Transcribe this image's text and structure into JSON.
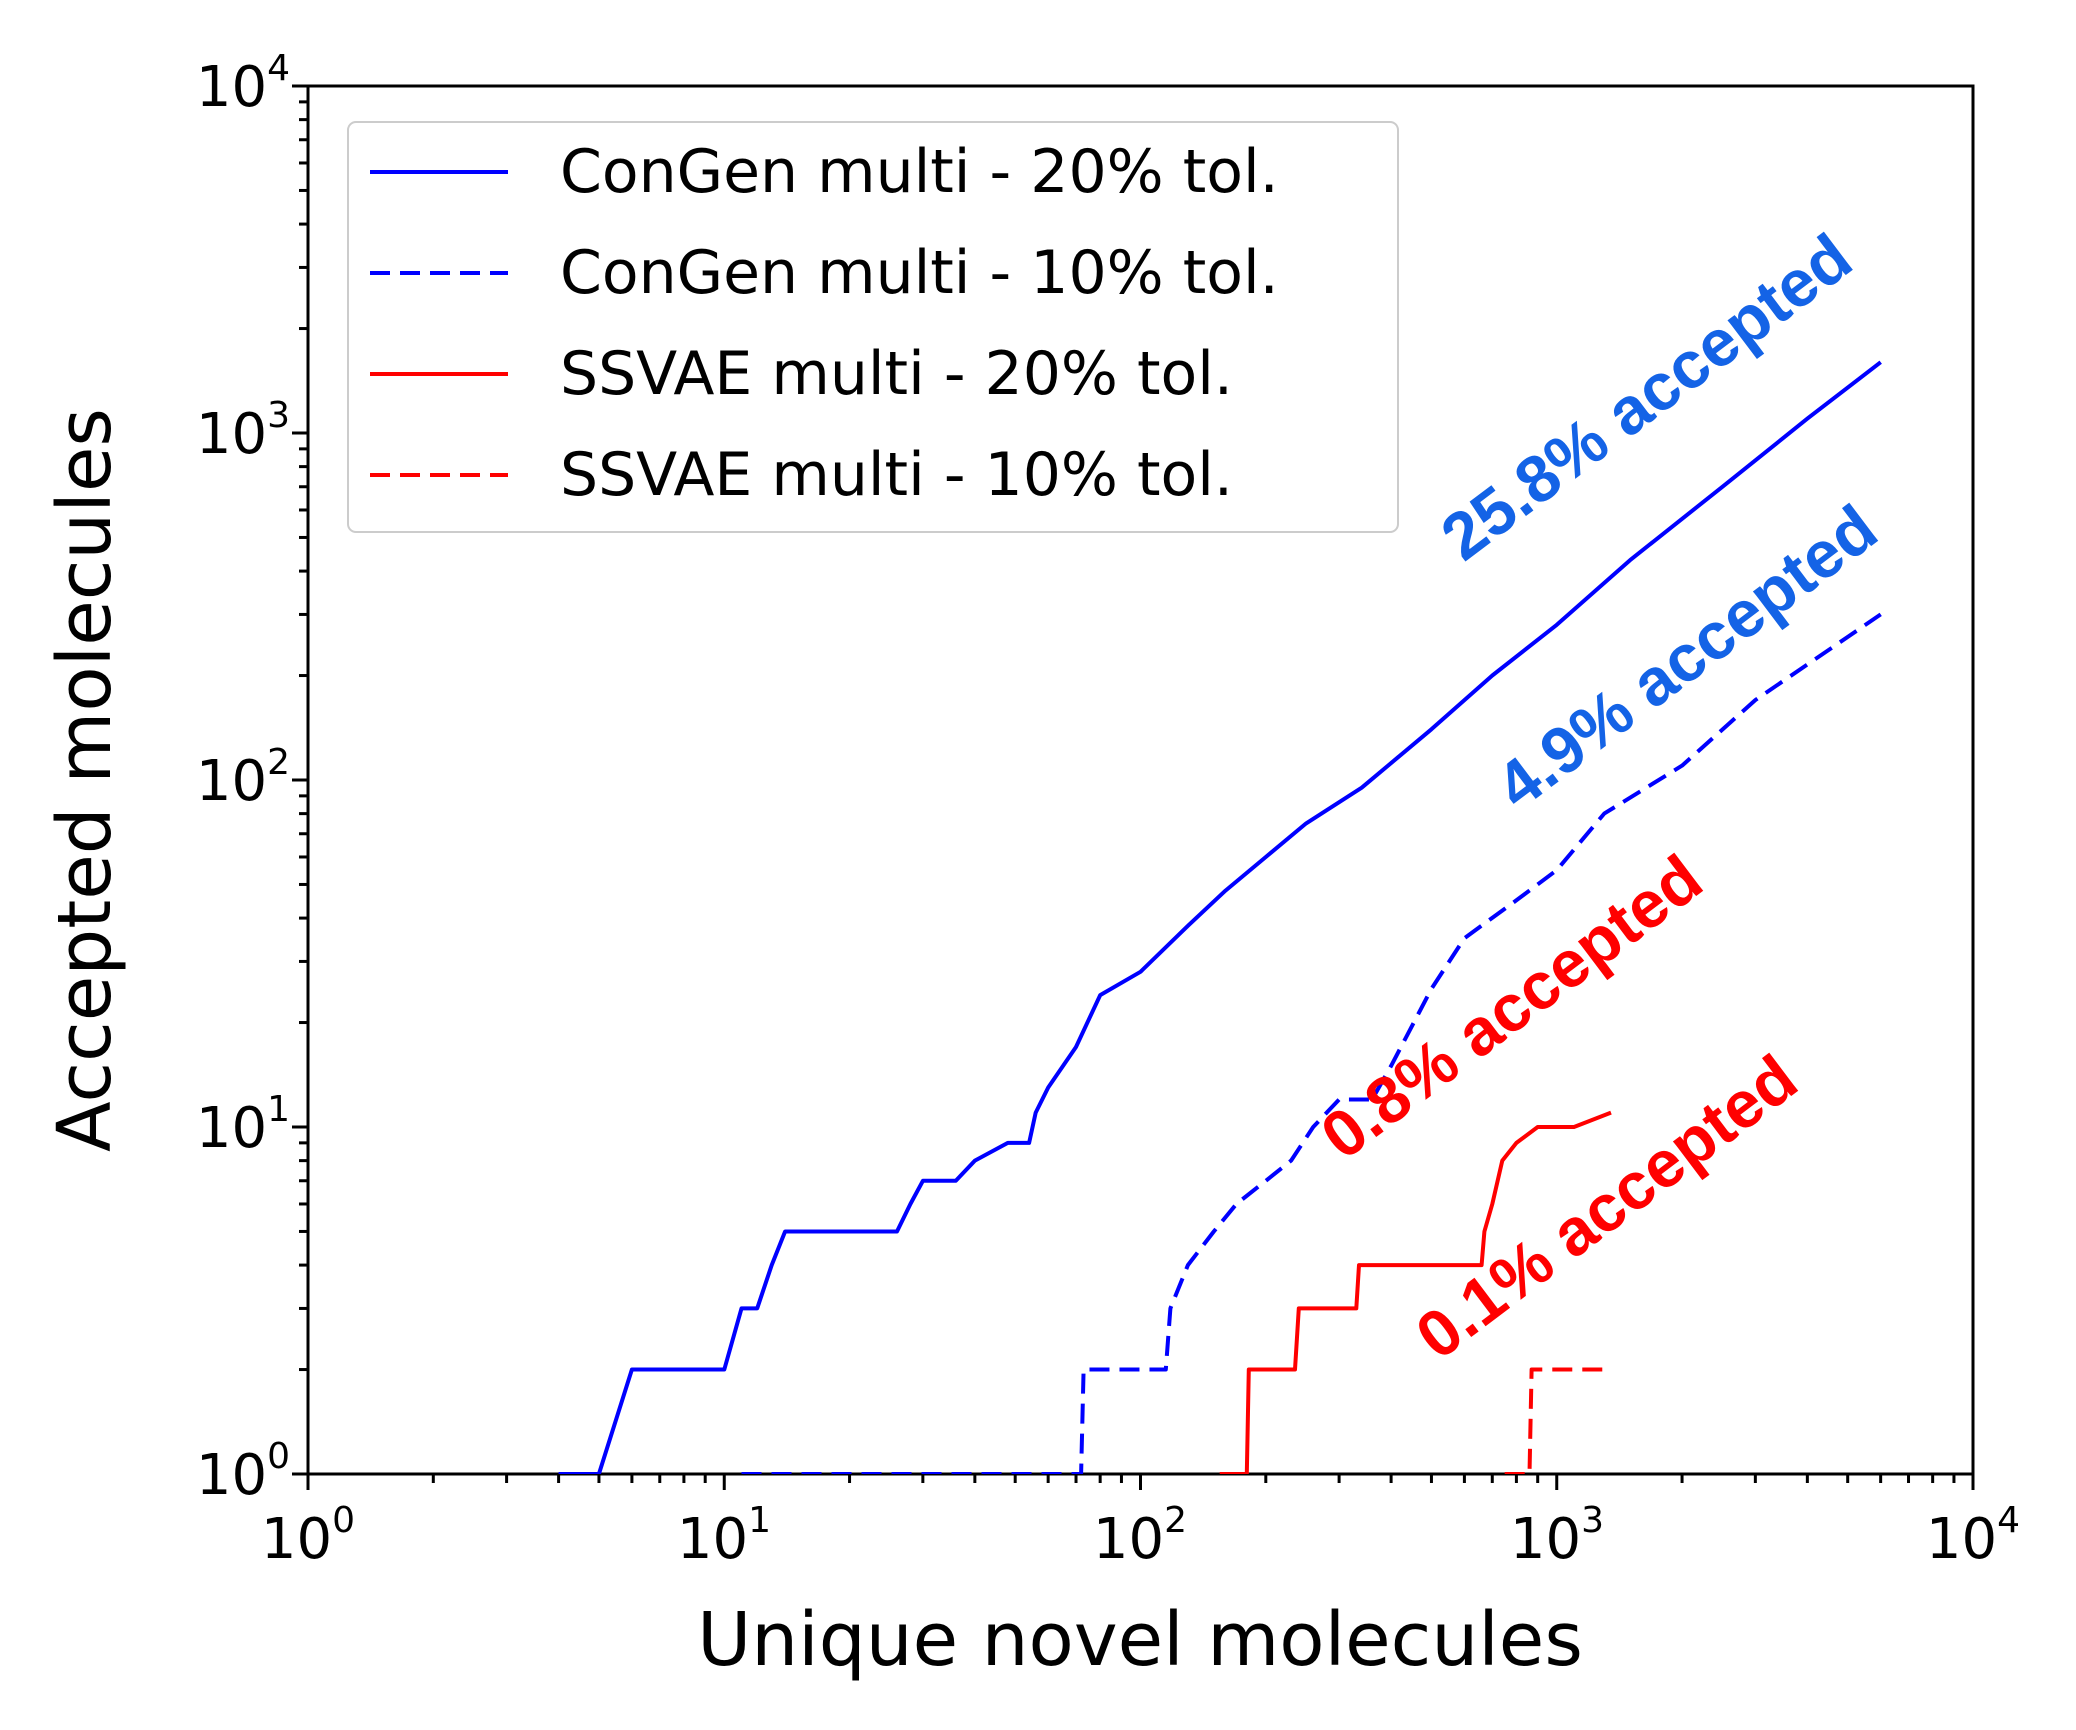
{
  "chart_data": {
    "type": "line",
    "xlabel": "Unique novel molecules",
    "ylabel": "Accepted molecules",
    "xscale": "log",
    "yscale": "log",
    "xlim": [
      1,
      10000
    ],
    "ylim": [
      1,
      10000
    ],
    "x_ticks": [
      {
        "base": "10",
        "exp": "0",
        "value": 1
      },
      {
        "base": "10",
        "exp": "1",
        "value": 10
      },
      {
        "base": "10",
        "exp": "2",
        "value": 100
      },
      {
        "base": "10",
        "exp": "3",
        "value": 1000
      },
      {
        "base": "10",
        "exp": "4",
        "value": 10000
      }
    ],
    "y_ticks": [
      {
        "base": "10",
        "exp": "0",
        "value": 1
      },
      {
        "base": "10",
        "exp": "1",
        "value": 10
      },
      {
        "base": "10",
        "exp": "2",
        "value": 100
      },
      {
        "base": "10",
        "exp": "3",
        "value": 1000
      },
      {
        "base": "10",
        "exp": "4",
        "value": 10000
      }
    ],
    "grid": false,
    "legend_position": "top-left",
    "series": [
      {
        "name": "ConGen multi - 20% tol.",
        "color": "#0000ff",
        "style": "solid",
        "x": [
          4,
          5,
          6,
          10,
          11,
          12,
          13,
          14,
          26,
          28,
          30,
          36,
          40,
          48,
          54,
          56,
          60,
          70,
          80,
          100,
          130,
          160,
          200,
          250,
          340,
          500,
          700,
          1000,
          1500,
          2500,
          4000,
          6000
        ],
        "y": [
          1,
          1,
          2,
          2,
          3,
          3,
          4,
          5,
          5,
          6,
          7,
          7,
          8,
          9,
          9,
          11,
          13,
          17,
          24,
          28,
          38,
          48,
          60,
          75,
          95,
          140,
          200,
          280,
          430,
          700,
          1100,
          1600
        ]
      },
      {
        "name": "ConGen multi - 10% tol.",
        "color": "#0000ff",
        "style": "dashed",
        "x": [
          11,
          20,
          40,
          72,
          73,
          115,
          118,
          130,
          150,
          170,
          200,
          230,
          260,
          300,
          360,
          400,
          500,
          600,
          800,
          1000,
          1300,
          2000,
          3000,
          6000
        ],
        "y": [
          1,
          1,
          1,
          1,
          2,
          2,
          3,
          4,
          5,
          6,
          7,
          8,
          10,
          12,
          12,
          15,
          25,
          35,
          45,
          55,
          80,
          110,
          170,
          300
        ]
      },
      {
        "name": "SSVAE multi - 20% tol.",
        "color": "#ff0000",
        "style": "solid",
        "x": [
          155,
          180,
          182,
          235,
          240,
          330,
          335,
          660,
          670,
          700,
          740,
          800,
          900,
          1100,
          1350
        ],
        "y": [
          1,
          1,
          2,
          2,
          3,
          3,
          4,
          4,
          5,
          6,
          8,
          9,
          10,
          10,
          11
        ]
      },
      {
        "name": "SSVAE multi - 10% tol.",
        "color": "#ff0000",
        "style": "dashed",
        "x": [
          750,
          860,
          870,
          1350
        ],
        "y": [
          1,
          1,
          2,
          2
        ]
      }
    ],
    "annotations": [
      {
        "text": "25.8% accepted",
        "color": "#1463e6"
      },
      {
        "text": "4.9% accepted",
        "color": "#1463e6"
      },
      {
        "text": "0.8% accepted",
        "color": "#ff0000"
      },
      {
        "text": "0.1% accepted",
        "color": "#ff0000"
      }
    ]
  }
}
